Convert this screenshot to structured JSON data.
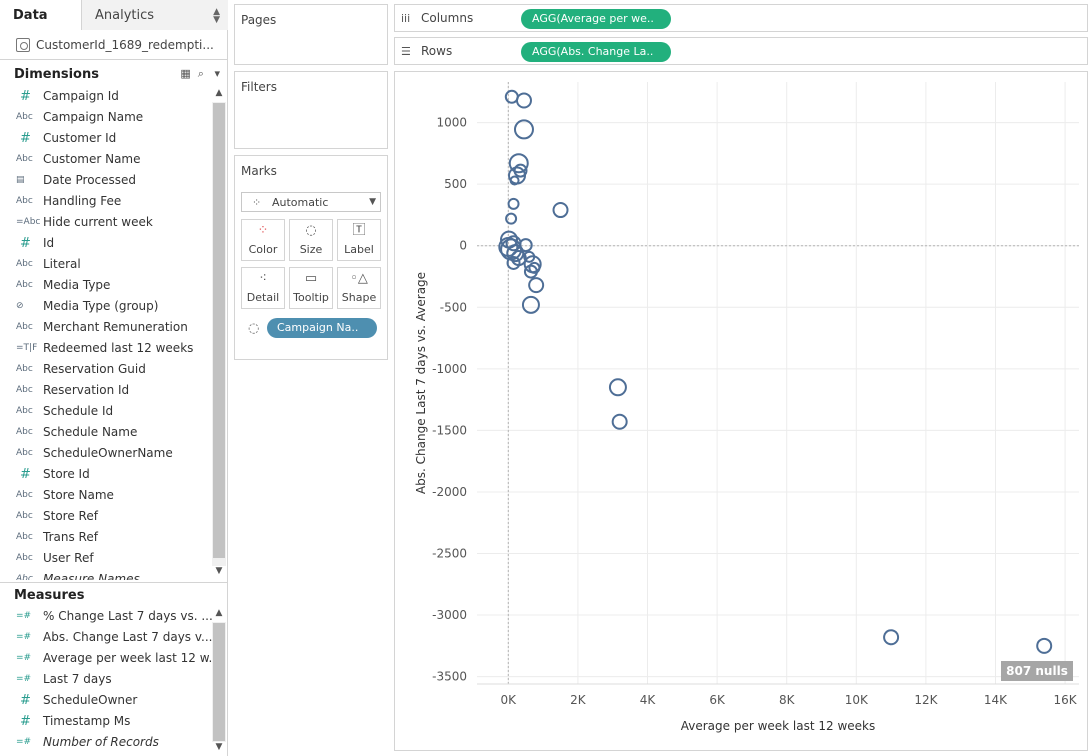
{
  "tabs": {
    "data": "Data",
    "analytics": "Analytics"
  },
  "datasource": "CustomerId_1689_redempti...",
  "dimensions": {
    "title": "Dimensions",
    "fields": [
      {
        "type": "#",
        "name": "Campaign Id"
      },
      {
        "type": "Abc",
        "name": "Campaign Name"
      },
      {
        "type": "#",
        "name": "Customer Id"
      },
      {
        "type": "Abc",
        "name": "Customer Name"
      },
      {
        "type": "date",
        "name": "Date Processed"
      },
      {
        "type": "Abc",
        "name": "Handling Fee"
      },
      {
        "type": "=Abc",
        "name": "Hide current week"
      },
      {
        "type": "#",
        "name": "Id"
      },
      {
        "type": "Abc",
        "name": "Literal"
      },
      {
        "type": "Abc",
        "name": "Media Type"
      },
      {
        "type": "clip",
        "name": "Media Type (group)"
      },
      {
        "type": "Abc",
        "name": "Merchant Remuneration"
      },
      {
        "type": "=T|F",
        "name": "Redeemed last 12 weeks"
      },
      {
        "type": "Abc",
        "name": "Reservation Guid"
      },
      {
        "type": "Abc",
        "name": "Reservation Id"
      },
      {
        "type": "Abc",
        "name": "Schedule Id"
      },
      {
        "type": "Abc",
        "name": "Schedule Name"
      },
      {
        "type": "Abc",
        "name": "ScheduleOwnerName"
      },
      {
        "type": "#",
        "name": "Store Id"
      },
      {
        "type": "Abc",
        "name": "Store Name"
      },
      {
        "type": "Abc",
        "name": "Store Ref"
      },
      {
        "type": "Abc",
        "name": "Trans Ref"
      },
      {
        "type": "Abc",
        "name": "User Ref"
      },
      {
        "type": "Abc",
        "name": "Measure Names",
        "italic": true
      }
    ]
  },
  "measures": {
    "title": "Measures",
    "fields": [
      {
        "type": "=#",
        "name": "% Change Last 7 days vs. ..."
      },
      {
        "type": "=#",
        "name": "Abs.  Change Last 7 days v..."
      },
      {
        "type": "=#",
        "name": "Average per week last 12 w..."
      },
      {
        "type": "=#",
        "name": "Last 7 days"
      },
      {
        "type": "#",
        "name": "ScheduleOwner"
      },
      {
        "type": "#",
        "name": "Timestamp Ms"
      },
      {
        "type": "=#",
        "name": "Number of Records",
        "italic": true
      }
    ]
  },
  "cards": {
    "pages": "Pages",
    "filters": "Filters",
    "marks": {
      "title": "Marks",
      "mark_type": "Automatic",
      "buttons": [
        "Color",
        "Size",
        "Label",
        "Detail",
        "Tooltip",
        "Shape"
      ],
      "pill": "Campaign Na.."
    }
  },
  "shelves": {
    "columns": {
      "label": "Columns",
      "pill": "AGG(Average per we.."
    },
    "rows": {
      "label": "Rows",
      "pill": "AGG(Abs.  Change La.."
    }
  },
  "nulls_badge": "807 nulls",
  "colors": {
    "mark": "#4e6e96",
    "pill_green": "#22b07d",
    "pill_blue": "#4e8fb0"
  },
  "chart_data": {
    "type": "scatter",
    "xlabel": "Average per week last 12 weeks",
    "ylabel": "Abs.  Change Last 7 days vs. Average",
    "xlim": [
      -900,
      16400
    ],
    "ylim": [
      -3560,
      1330
    ],
    "x_ticks": [
      0,
      2000,
      4000,
      6000,
      8000,
      10000,
      12000,
      14000,
      16000
    ],
    "x_tick_labels": [
      "0K",
      "2K",
      "4K",
      "6K",
      "8K",
      "10K",
      "12K",
      "14K",
      "16K"
    ],
    "y_ticks": [
      1000,
      500,
      0,
      -500,
      -1000,
      -1500,
      -2000,
      -2500,
      -3000,
      -3500
    ],
    "y_tick_labels": [
      "1000",
      "500",
      "0",
      "-500",
      "-1000",
      "-1500",
      "-2000",
      "-2500",
      "-3000",
      "-3500"
    ],
    "grid": true,
    "points": [
      {
        "x": 100,
        "y": 1210,
        "s": 6
      },
      {
        "x": 450,
        "y": 1180,
        "s": 7
      },
      {
        "x": 450,
        "y": 945,
        "s": 9
      },
      {
        "x": 300,
        "y": 670,
        "s": 9
      },
      {
        "x": 250,
        "y": 570,
        "s": 8
      },
      {
        "x": 350,
        "y": 610,
        "s": 6
      },
      {
        "x": 180,
        "y": 530,
        "s": 4
      },
      {
        "x": 150,
        "y": 340,
        "s": 5
      },
      {
        "x": 1500,
        "y": 290,
        "s": 7
      },
      {
        "x": 80,
        "y": 220,
        "s": 5
      },
      {
        "x": 20,
        "y": 50,
        "s": 8
      },
      {
        "x": 150,
        "y": 20,
        "s": 7
      },
      {
        "x": 500,
        "y": 5,
        "s": 6
      },
      {
        "x": 0,
        "y": -10,
        "s": 9
      },
      {
        "x": 80,
        "y": -30,
        "s": 10
      },
      {
        "x": 200,
        "y": -60,
        "s": 8
      },
      {
        "x": 300,
        "y": -100,
        "s": 7
      },
      {
        "x": 150,
        "y": -140,
        "s": 6
      },
      {
        "x": 600,
        "y": -90,
        "s": 5
      },
      {
        "x": 700,
        "y": -150,
        "s": 8
      },
      {
        "x": 650,
        "y": -210,
        "s": 6
      },
      {
        "x": 750,
        "y": -180,
        "s": 5
      },
      {
        "x": 800,
        "y": -320,
        "s": 7
      },
      {
        "x": 650,
        "y": -480,
        "s": 8
      },
      {
        "x": 3150,
        "y": -1150,
        "s": 8
      },
      {
        "x": 3200,
        "y": -1430,
        "s": 7
      },
      {
        "x": 11000,
        "y": -3180,
        "s": 7
      },
      {
        "x": 15400,
        "y": -3250,
        "s": 7
      }
    ]
  }
}
